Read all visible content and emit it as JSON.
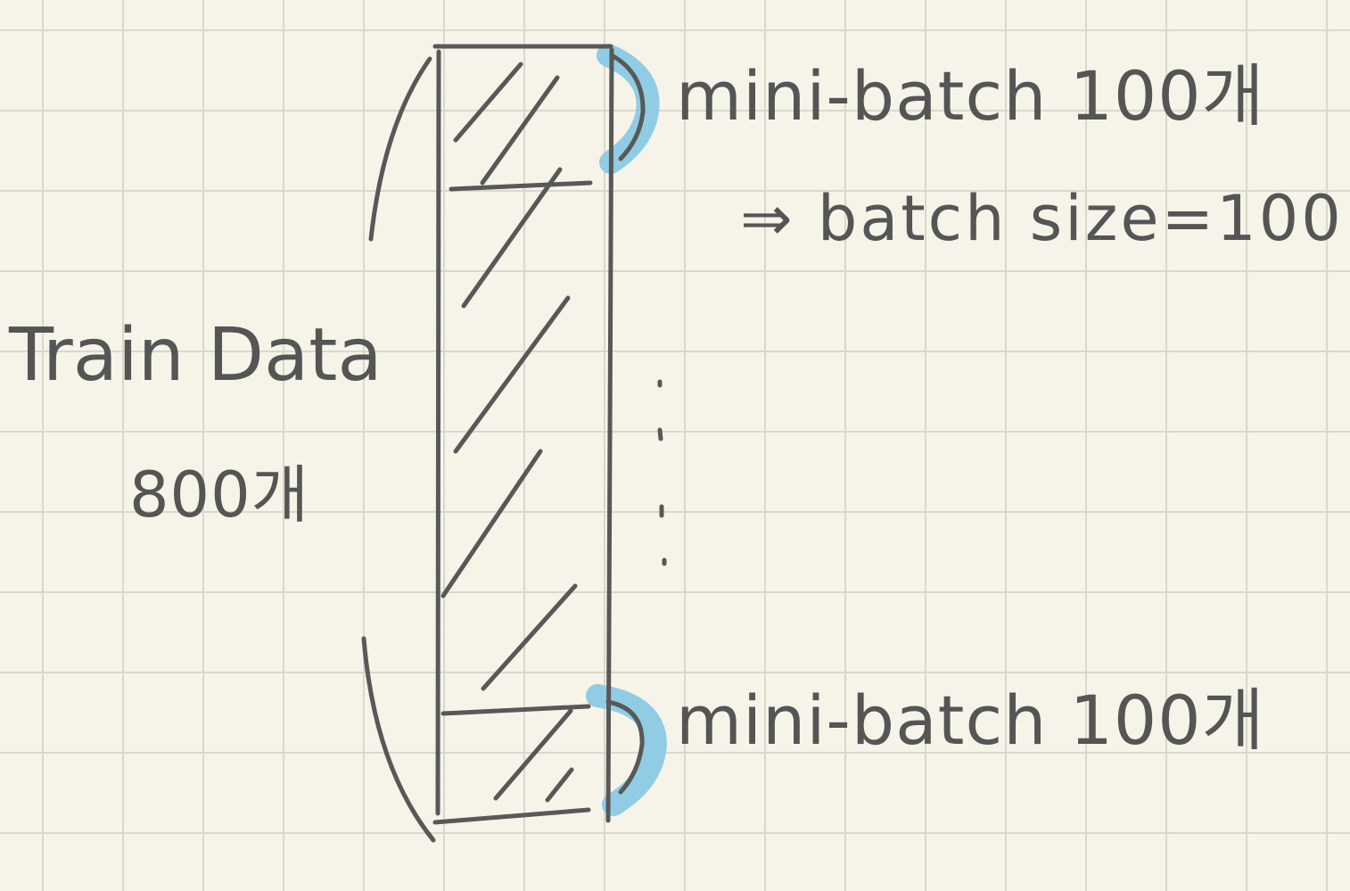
{
  "labels": {
    "train_data": "Train Data",
    "train_count": "800개",
    "mini_batch_top": "mini-batch 100개",
    "batch_size_note": "⇒ batch size=100",
    "mini_batch_bottom": "mini-batch 100개"
  },
  "ellipsis": "⋮",
  "colors": {
    "paper": "#f6f4e9",
    "grid": "#d9d8cd",
    "ink": "#585858",
    "highlight": "#90cde4"
  }
}
